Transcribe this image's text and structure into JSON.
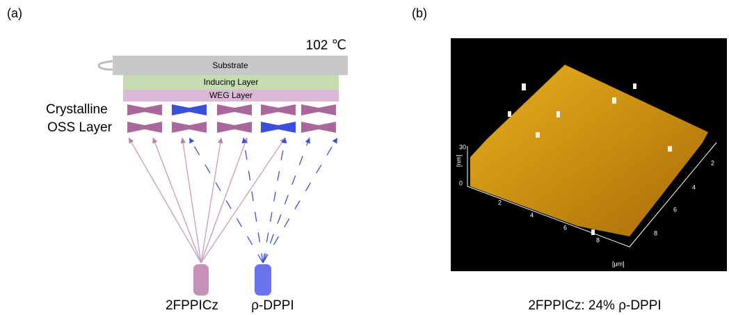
{
  "panel_a": {
    "label": "(a)",
    "temperature": "102 ℃",
    "layers": [
      "Substrate",
      "Inducing Layer",
      "WEG Layer"
    ],
    "oss_label": [
      "Crystalline",
      "OSS Layer"
    ],
    "sources": [
      "2FPPICz",
      "ρ-DPPI"
    ]
  },
  "panel_b": {
    "label": "(b)",
    "z_axis": {
      "unit": "[nm]",
      "ticks": [
        "0",
        "30"
      ]
    },
    "x_axis": {
      "unit": "[μm]",
      "ticks": [
        "2",
        "4",
        "6",
        "8"
      ]
    },
    "y_axis": {
      "ticks": [
        "2",
        "4",
        "6",
        "8"
      ]
    },
    "caption": "2FPPICz: 24% ρ-DPPI"
  }
}
